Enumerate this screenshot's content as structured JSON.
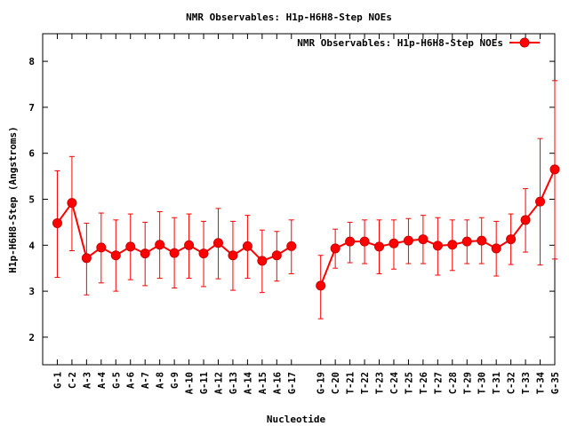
{
  "chart_data": {
    "type": "line",
    "title": "NMR Observables: H1p-H6H8-Step NOEs",
    "xlabel": "Nucleotide",
    "ylabel": "H1p-H6H8-Step (Angstroms)",
    "legend": {
      "label": "NMR Observables: H1p-H6H8-Step NOEs",
      "position": "top-right"
    },
    "ylim": [
      1.4,
      8.6
    ],
    "yticks": [
      2,
      3,
      4,
      5,
      6,
      7,
      8
    ],
    "grid": false,
    "color": "#ff0000",
    "x_positions": [
      1,
      2,
      3,
      4,
      5,
      6,
      7,
      8,
      9,
      10,
      11,
      12,
      13,
      14,
      15,
      16,
      17,
      19,
      20,
      21,
      22,
      23,
      24,
      25,
      26,
      27,
      28,
      29,
      30,
      31,
      32,
      33,
      34,
      35
    ],
    "categories": [
      "G-1",
      "C-2",
      "A-3",
      "A-4",
      "G-5",
      "A-6",
      "A-7",
      "A-8",
      "G-9",
      "A-10",
      "G-11",
      "A-12",
      "G-13",
      "A-14",
      "A-15",
      "A-16",
      "G-17",
      "G-19",
      "C-20",
      "T-21",
      "T-22",
      "T-23",
      "C-24",
      "T-25",
      "T-26",
      "T-27",
      "C-28",
      "T-29",
      "T-30",
      "T-31",
      "C-32",
      "T-33",
      "T-34",
      "G-35"
    ],
    "segments": [
      [
        0,
        16
      ],
      [
        17,
        33
      ]
    ],
    "series": [
      {
        "values": [
          4.48,
          4.92,
          3.72,
          3.95,
          3.78,
          3.97,
          3.82,
          4.01,
          3.83,
          4.0,
          3.82,
          4.05,
          3.78,
          3.98,
          3.66,
          3.78,
          3.98,
          3.12,
          3.93,
          4.08,
          4.08,
          3.97,
          4.04,
          4.1,
          4.13,
          3.99,
          4.01,
          4.08,
          4.1,
          3.93,
          4.13,
          4.55,
          4.95,
          5.65
        ],
        "error_low": [
          3.3,
          3.88,
          2.92,
          3.18,
          3.0,
          3.25,
          3.12,
          3.28,
          3.07,
          3.28,
          3.1,
          3.27,
          3.02,
          3.28,
          2.97,
          3.22,
          3.38,
          2.4,
          3.5,
          3.62,
          3.6,
          3.38,
          3.48,
          3.6,
          3.6,
          3.35,
          3.45,
          3.6,
          3.6,
          3.33,
          3.58,
          3.85,
          3.57,
          3.7
        ],
        "error_high": [
          5.62,
          5.93,
          4.48,
          4.7,
          4.55,
          4.68,
          4.5,
          4.73,
          4.6,
          4.68,
          4.52,
          4.8,
          4.52,
          4.65,
          4.33,
          4.3,
          4.55,
          3.78,
          4.35,
          4.5,
          4.55,
          4.55,
          4.55,
          4.58,
          4.65,
          4.6,
          4.55,
          4.55,
          4.6,
          4.52,
          4.68,
          5.23,
          6.32,
          7.58
        ]
      }
    ]
  }
}
